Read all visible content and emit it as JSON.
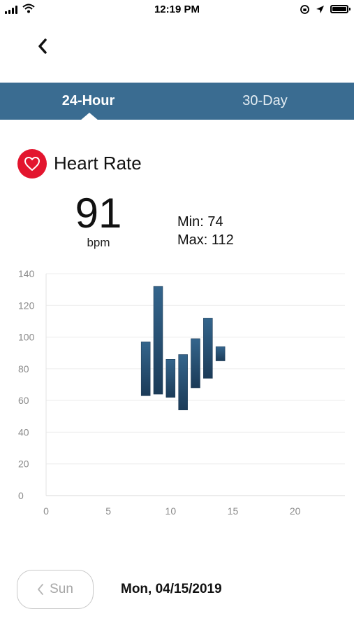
{
  "status_bar": {
    "time": "12:19 PM"
  },
  "tabs": [
    {
      "label": "24-Hour",
      "active": true
    },
    {
      "label": "30-Day",
      "active": false
    }
  ],
  "header": {
    "title": "Heart Rate",
    "value": "91",
    "unit": "bpm",
    "min_label": "Min: 74",
    "max_label": "Max: 112"
  },
  "colors": {
    "accent": "#3a6c91",
    "heart": "#e3152e",
    "bar_top": "#34658c",
    "bar_bottom": "#1b3b58"
  },
  "chart_data": {
    "type": "bar",
    "subtype": "range",
    "x_ticks": [
      0,
      5,
      10,
      15,
      20
    ],
    "y_ticks": [
      0,
      20,
      40,
      60,
      80,
      100,
      120,
      140
    ],
    "xlim": [
      0,
      24
    ],
    "ylim": [
      0,
      140
    ],
    "grid": true,
    "series": [
      {
        "points": [
          {
            "x": 8,
            "low": 63,
            "high": 97
          },
          {
            "x": 9,
            "low": 64,
            "high": 132
          },
          {
            "x": 10,
            "low": 62,
            "high": 86
          },
          {
            "x": 11,
            "low": 54,
            "high": 89
          },
          {
            "x": 12,
            "low": 68,
            "high": 99
          },
          {
            "x": 13,
            "low": 74,
            "high": 112
          },
          {
            "x": 14,
            "low": 85,
            "high": 94
          }
        ]
      }
    ]
  },
  "footer": {
    "prev_label": "Sun",
    "date": "Mon, 04/15/2019"
  }
}
